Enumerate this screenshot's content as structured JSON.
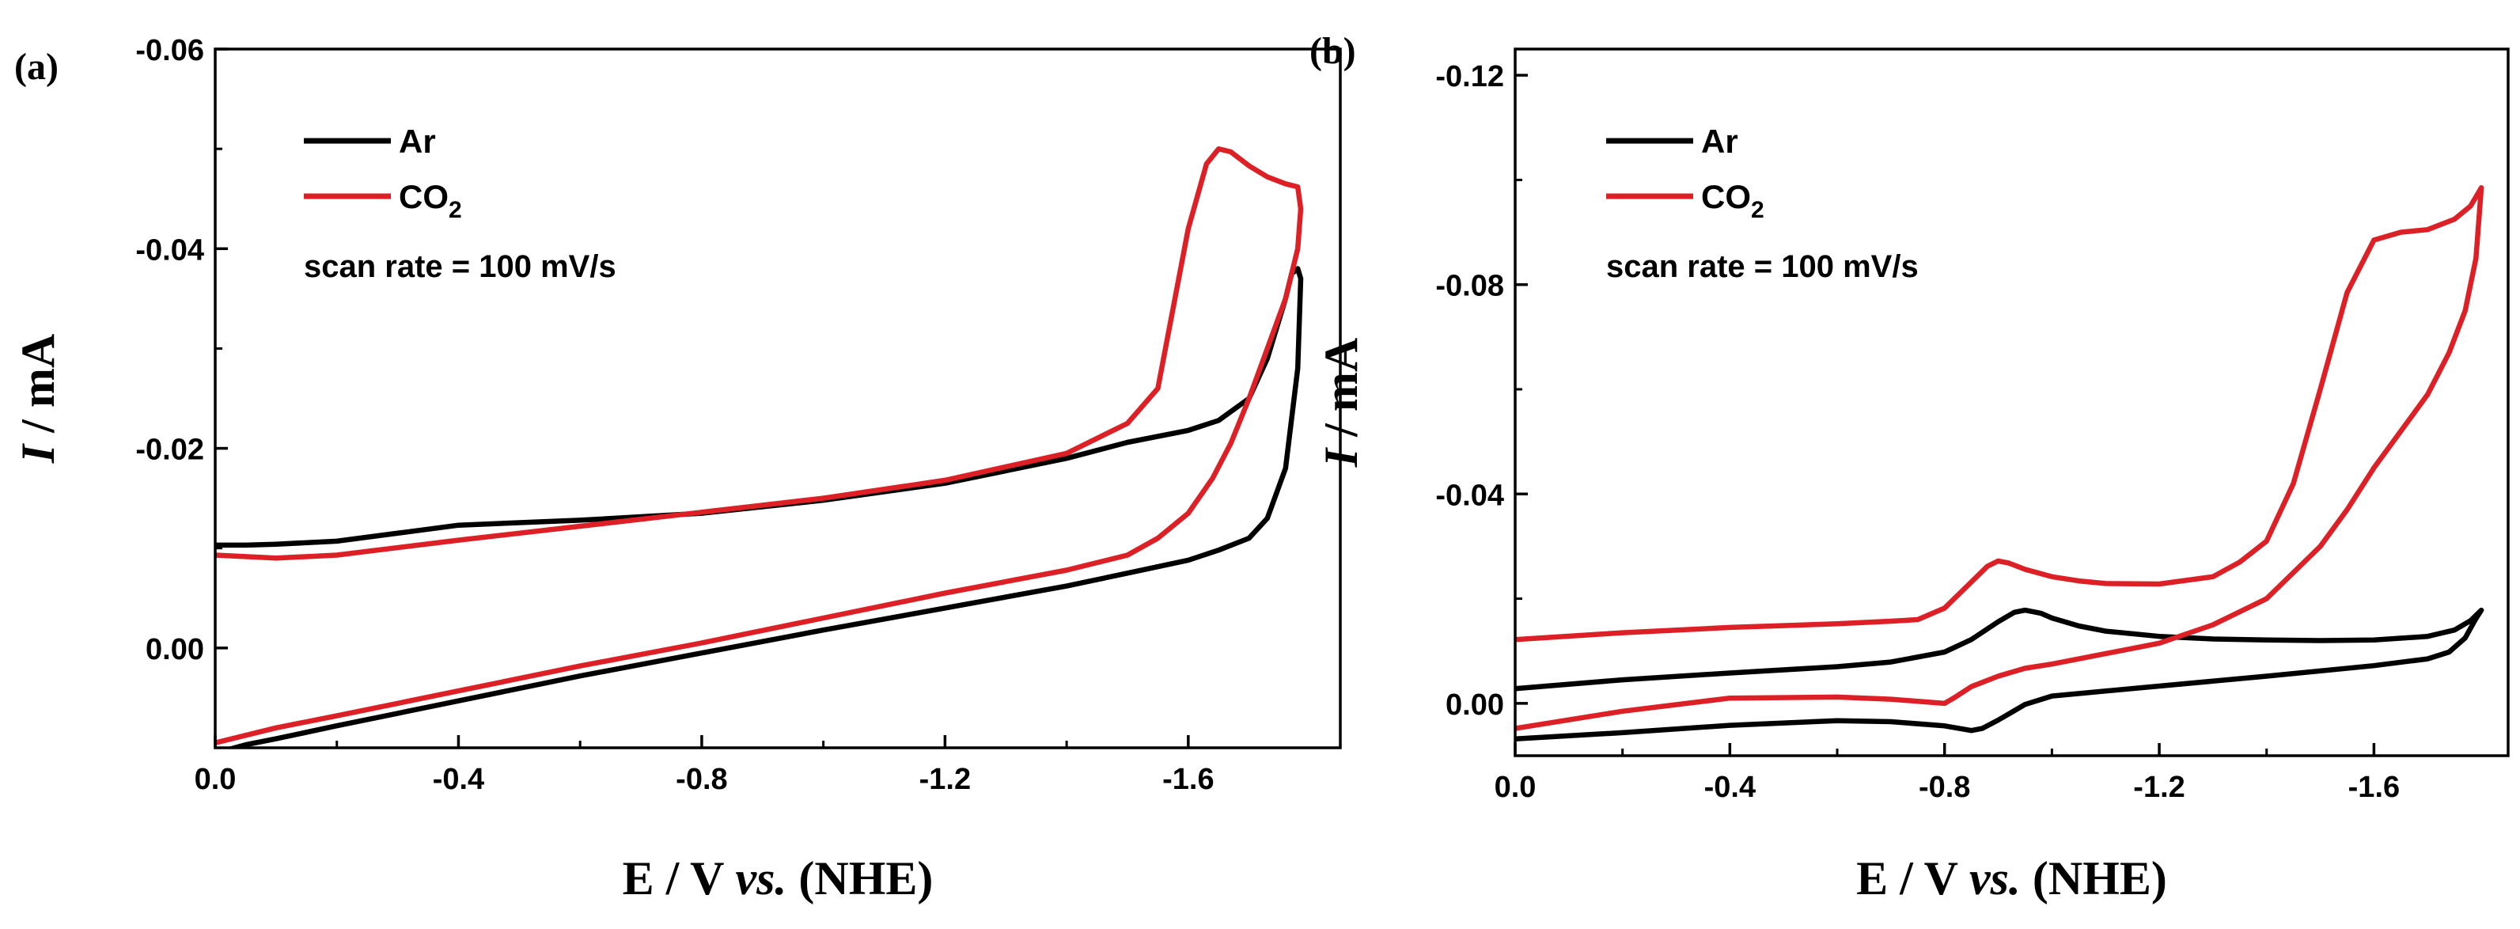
{
  "chart_data": [
    {
      "panel_label": "(a)",
      "type": "line",
      "xlabel": {
        "prefix": "E / V ",
        "italic": "vs.",
        "suffix": " (NHE)"
      },
      "ylabel": {
        "italic": "I",
        "rest": " / mA"
      },
      "xlim": [
        0.0,
        -1.85
      ],
      "ylim": [
        0.01,
        -0.06
      ],
      "xticks": [
        0.0,
        -0.4,
        -0.8,
        -1.2,
        -1.6
      ],
      "xtick_labels": [
        "0.0",
        "-0.4",
        "-0.8",
        "-1.2",
        "-1.6"
      ],
      "yticks": [
        -0.06,
        -0.04,
        -0.02,
        0.0
      ],
      "ytick_labels": [
        "-0.06",
        "-0.04",
        "-0.02",
        "0.00"
      ],
      "yminor": [
        -0.05,
        -0.03,
        -0.01
      ],
      "annotation": "scan rate = 100 mV/s",
      "series": [
        {
          "name": "Ar",
          "legend_base": "Ar",
          "legend_sub": "",
          "color": "#000000",
          "x": [
            0.0,
            -0.05,
            -0.1,
            -0.2,
            -0.4,
            -0.6,
            -0.8,
            -1.0,
            -1.2,
            -1.4,
            -1.5,
            -1.6,
            -1.65,
            -1.7,
            -1.73,
            -1.76,
            -1.77,
            -1.78,
            -1.785,
            -1.78,
            -1.76,
            -1.73,
            -1.7,
            -1.65,
            -1.6,
            -1.5,
            -1.4,
            -1.2,
            -1.0,
            -0.8,
            -0.6,
            -0.4,
            -0.2,
            -0.1,
            -0.05,
            -0.02
          ],
          "y": [
            -0.0103,
            -0.0103,
            -0.0104,
            -0.0107,
            -0.0123,
            -0.0128,
            -0.0135,
            -0.0148,
            -0.0165,
            -0.019,
            -0.0206,
            -0.0218,
            -0.0228,
            -0.025,
            -0.029,
            -0.035,
            -0.0375,
            -0.038,
            -0.037,
            -0.028,
            -0.018,
            -0.013,
            -0.011,
            -0.0098,
            -0.0088,
            -0.0075,
            -0.0062,
            -0.004,
            -0.0018,
            0.0005,
            0.0028,
            0.0053,
            0.0078,
            0.0091,
            0.0097,
            0.0102
          ]
        },
        {
          "name": "CO2",
          "legend_base": "CO",
          "legend_sub": "2",
          "color": "#dd1f26",
          "x": [
            0.0,
            -0.1,
            -0.2,
            -0.4,
            -0.6,
            -0.8,
            -1.0,
            -1.2,
            -1.4,
            -1.5,
            -1.55,
            -1.6,
            -1.63,
            -1.65,
            -1.67,
            -1.7,
            -1.73,
            -1.76,
            -1.78,
            -1.785,
            -1.78,
            -1.76,
            -1.73,
            -1.7,
            -1.67,
            -1.64,
            -1.6,
            -1.55,
            -1.5,
            -1.4,
            -1.2,
            -1.0,
            -0.8,
            -0.6,
            -0.4,
            -0.2,
            -0.1,
            0.0
          ],
          "y": [
            -0.0093,
            -0.009,
            -0.0093,
            -0.0108,
            -0.0122,
            -0.0136,
            -0.015,
            -0.0168,
            -0.0195,
            -0.0225,
            -0.026,
            -0.042,
            -0.0485,
            -0.05,
            -0.0497,
            -0.0483,
            -0.0472,
            -0.0465,
            -0.0462,
            -0.044,
            -0.04,
            -0.035,
            -0.03,
            -0.025,
            -0.0205,
            -0.017,
            -0.0135,
            -0.011,
            -0.0093,
            -0.0078,
            -0.0055,
            -0.003,
            -0.0005,
            0.0018,
            0.0043,
            0.0068,
            0.008,
            0.0095
          ]
        }
      ]
    },
    {
      "panel_label": "(b)",
      "type": "line",
      "xlabel": {
        "prefix": "E / V ",
        "italic": "vs.",
        "suffix": " (NHE)"
      },
      "ylabel": {
        "italic": "I",
        "rest": " / mA"
      },
      "xlim": [
        0.0,
        -1.85
      ],
      "ylim": [
        0.01,
        -0.125
      ],
      "xticks": [
        0.0,
        -0.4,
        -0.8,
        -1.2,
        -1.6
      ],
      "xtick_labels": [
        "0.0",
        "-0.4",
        "-0.8",
        "-1.2",
        "-1.6"
      ],
      "yticks": [
        -0.12,
        -0.08,
        -0.04,
        0.0
      ],
      "ytick_labels": [
        "-0.12",
        "-0.08",
        "-0.04",
        "0.00"
      ],
      "yminor": [
        -0.1,
        -0.06,
        -0.02
      ],
      "annotation": "scan rate = 100 mV/s",
      "series": [
        {
          "name": "Ar",
          "legend_base": "Ar",
          "legend_sub": "",
          "color": "#000000",
          "x": [
            0.0,
            -0.2,
            -0.4,
            -0.6,
            -0.7,
            -0.8,
            -0.85,
            -0.9,
            -0.93,
            -0.95,
            -0.98,
            -1.0,
            -1.05,
            -1.1,
            -1.2,
            -1.3,
            -1.4,
            -1.5,
            -1.6,
            -1.7,
            -1.75,
            -1.78,
            -1.8,
            -1.79,
            -1.77,
            -1.74,
            -1.7,
            -1.6,
            -1.4,
            -1.2,
            -1.0,
            -0.95,
            -0.9,
            -0.87,
            -0.85,
            -0.8,
            -0.7,
            -0.6,
            -0.4,
            -0.2,
            0.0
          ],
          "y": [
            -0.0028,
            -0.0045,
            -0.0058,
            -0.007,
            -0.0079,
            -0.0098,
            -0.0122,
            -0.0156,
            -0.0174,
            -0.0178,
            -0.0172,
            -0.0163,
            -0.0148,
            -0.0138,
            -0.0128,
            -0.0123,
            -0.0121,
            -0.012,
            -0.0121,
            -0.0128,
            -0.014,
            -0.0158,
            -0.0178,
            -0.0162,
            -0.0125,
            -0.0098,
            -0.0085,
            -0.0072,
            -0.0052,
            -0.0033,
            -0.0014,
            0.0002,
            0.0032,
            0.0048,
            0.0052,
            0.0043,
            0.0035,
            0.0033,
            0.0042,
            0.0056,
            0.0068
          ]
        },
        {
          "name": "CO2",
          "legend_base": "CO",
          "legend_sub": "2",
          "color": "#dd1f26",
          "x": [
            0.0,
            -0.2,
            -0.4,
            -0.6,
            -0.7,
            -0.75,
            -0.8,
            -0.85,
            -0.88,
            -0.9,
            -0.92,
            -0.95,
            -1.0,
            -1.05,
            -1.1,
            -1.2,
            -1.3,
            -1.35,
            -1.4,
            -1.45,
            -1.5,
            -1.55,
            -1.6,
            -1.65,
            -1.7,
            -1.75,
            -1.78,
            -1.8,
            -1.79,
            -1.77,
            -1.74,
            -1.7,
            -1.65,
            -1.6,
            -1.55,
            -1.5,
            -1.4,
            -1.3,
            -1.2,
            -1.0,
            -0.95,
            -0.9,
            -0.85,
            -0.82,
            -0.8,
            -0.7,
            -0.6,
            -0.4,
            -0.2,
            0.0
          ],
          "y": [
            -0.0122,
            -0.0135,
            -0.0145,
            -0.0152,
            -0.0157,
            -0.016,
            -0.0182,
            -0.0232,
            -0.0262,
            -0.0272,
            -0.0268,
            -0.0256,
            -0.0242,
            -0.0234,
            -0.0229,
            -0.0228,
            -0.0242,
            -0.027,
            -0.031,
            -0.042,
            -0.06,
            -0.0785,
            -0.0885,
            -0.09,
            -0.0905,
            -0.0925,
            -0.095,
            -0.0985,
            -0.085,
            -0.075,
            -0.067,
            -0.059,
            -0.052,
            -0.045,
            -0.037,
            -0.03,
            -0.02,
            -0.015,
            -0.0115,
            -0.0075,
            -0.0067,
            -0.0052,
            -0.0032,
            -0.0012,
            0.0,
            -0.0008,
            -0.0012,
            -0.001,
            0.0015,
            0.0048
          ]
        }
      ]
    }
  ]
}
